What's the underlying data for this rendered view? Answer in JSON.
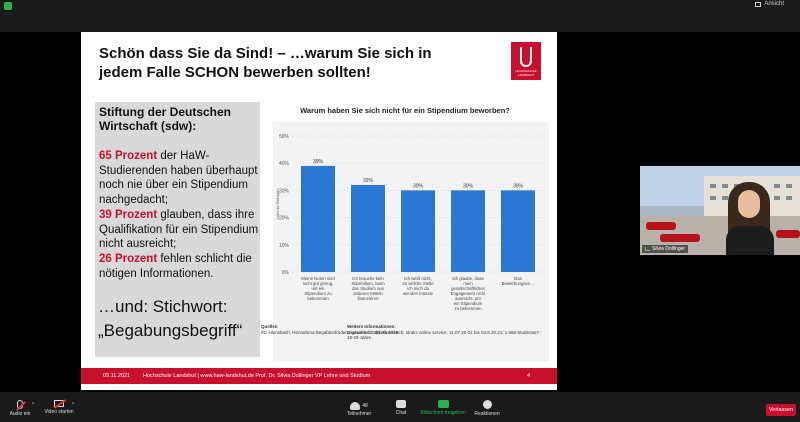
{
  "topbar": {
    "view_label": "Ansicht"
  },
  "slide": {
    "title": "Schön dass Sie da Sind! –  …warum Sie sich in jedem Falle SCHON bewerben sollten!",
    "logo_text": "HOCHSCHULE LANDSHUT",
    "left": {
      "heading": "Stiftung der Deutschen Wirtschaft (sdw):",
      "p1_num": "65 Prozent",
      "p1_rest": " der HaW-Studierenden haben überhaupt noch nie über ein Stipendium nachgedacht;",
      "p2_num": "39 Prozent",
      "p2_rest": " glauben, dass ihre Qualifikation für ein Stipendium nicht ausreicht;",
      "p3_num": "26 Prozent",
      "p3_rest": " fehlen schlicht die nötigen Informationen.",
      "tagline": "…und: Stichwort: „Begabungsbegriff“"
    },
    "source_label": "Quellen",
    "source_text": "IfD Allensbach; Hennebrna Begabtenförderungswerk © Statista 2018",
    "more_label": "Weitere Informationen:",
    "more_text": "Deutschland; IfD Allensbach; straks online service; 11.07.20-21 bis 03.8.20.21; 1.968 Studenten*; 18-29 Jahre",
    "footer_date": "09.11.2021",
    "footer_org": "Hochschule Landshut  |  www.haw-landshut.de   Prof. Dr. Silvia Dollinger VP Lehre und Studium",
    "footer_page": "4"
  },
  "chart_data": {
    "type": "bar",
    "title": "Warum haben Sie sich nicht für ein Stipendium beworben?",
    "ylabel": "Anteil der Befragten",
    "ylim": [
      0,
      50
    ],
    "yticks": [
      "0%",
      "10%",
      "20%",
      "30%",
      "40%",
      "50%"
    ],
    "categories": [
      "Meine Noten sind nicht gut genug, um ein Stipendium zu bekommen",
      "Ich brauche kein Stipendium, kann das Studium aus anderen Mitteln finanzieren",
      "Ich weiß nicht, an welche Stelle ich mich da wenden müsste",
      "Ich glaube, dass mein gesellschaftliches Engagement nicht ausreicht, um ein Stipendium zu bekommen",
      "Das Bewerbungsve…"
    ],
    "values": [
      39,
      32,
      30,
      30,
      30
    ],
    "value_labels": [
      "39%",
      "32%",
      "30%",
      "30%",
      "30%"
    ],
    "bar_color": "#2a78d4"
  },
  "video": {
    "name": "Silvia Dollinger"
  },
  "toolbar": {
    "audio_label": "Audio ein",
    "video_label": "Video starten",
    "participants_label": "Teilnehmer",
    "participants_count": "48",
    "chat_label": "Chat",
    "share_label": "Bildschirm freigeben",
    "reactions_label": "Reaktionen",
    "leave_label": "Verlassen"
  }
}
